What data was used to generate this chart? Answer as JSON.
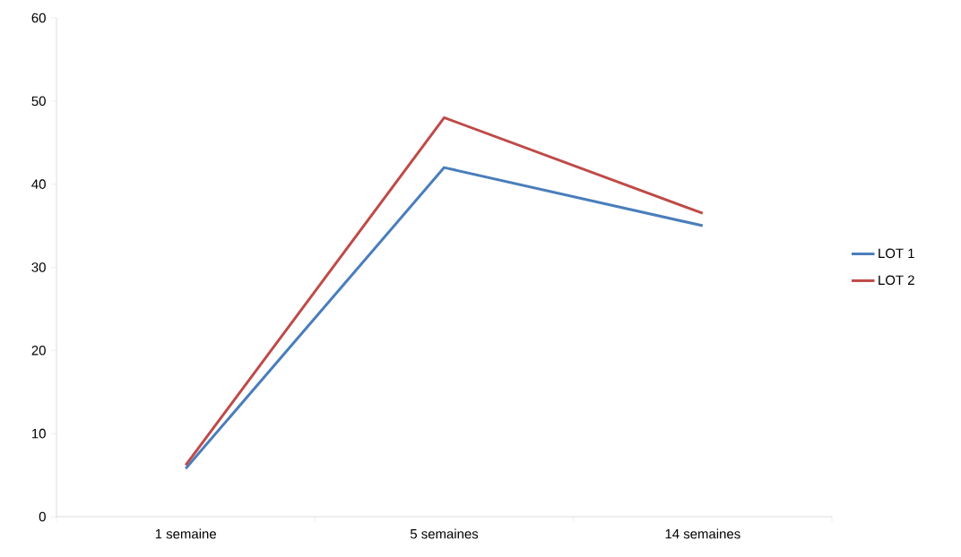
{
  "chart_data": {
    "type": "line",
    "categories": [
      "1 semaine",
      "5 semaines",
      "14 semaines"
    ],
    "series": [
      {
        "name": "LOT 1",
        "color": "#4a7ebb",
        "values": [
          5.8,
          42,
          35
        ]
      },
      {
        "name": "LOT 2",
        "color": "#be4b48",
        "values": [
          6.2,
          48,
          36.5
        ]
      }
    ],
    "ylim": [
      0,
      60
    ],
    "yticks": [
      0,
      10,
      20,
      30,
      40,
      50,
      60
    ],
    "legend": "right",
    "marker": "none"
  }
}
